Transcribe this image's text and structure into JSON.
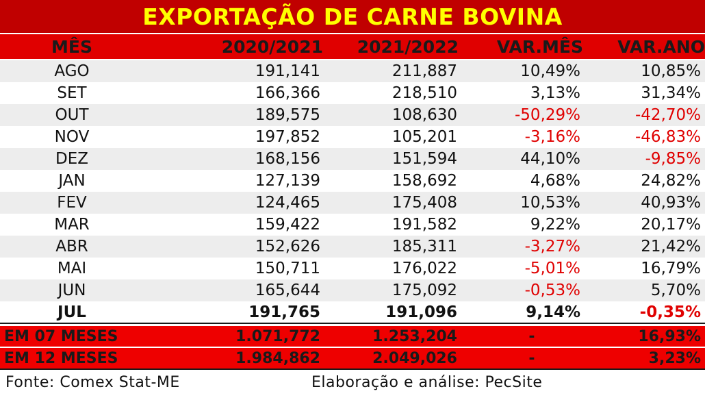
{
  "title": "EXPORTAÇÃO DE CARNE BOVINA",
  "header": [
    "MÊS",
    "2020/2021",
    "2021/2022",
    "VAR.MÊS",
    "VAR.ANO"
  ],
  "rows": [
    {
      "mes": "AGO",
      "a": "191,141",
      "b": "211,887",
      "vm": "10,49%",
      "va": "10,85%",
      "vm_neg": false,
      "va_neg": false
    },
    {
      "mes": "SET",
      "a": "166,366",
      "b": "218,510",
      "vm": "3,13%",
      "va": "31,34%",
      "vm_neg": false,
      "va_neg": false
    },
    {
      "mes": "OUT",
      "a": "189,575",
      "b": "108,630",
      "vm": "-50,29%",
      "va": "-42,70%",
      "vm_neg": true,
      "va_neg": true
    },
    {
      "mes": "NOV",
      "a": "197,852",
      "b": "105,201",
      "vm": "-3,16%",
      "va": "-46,83%",
      "vm_neg": true,
      "va_neg": true
    },
    {
      "mes": "DEZ",
      "a": "168,156",
      "b": "151,594",
      "vm": "44,10%",
      "va": "-9,85%",
      "vm_neg": false,
      "va_neg": true
    },
    {
      "mes": "JAN",
      "a": "127,139",
      "b": "158,692",
      "vm": "4,68%",
      "va": "24,82%",
      "vm_neg": false,
      "va_neg": false
    },
    {
      "mes": "FEV",
      "a": "124,465",
      "b": "175,408",
      "vm": "10,53%",
      "va": "40,93%",
      "vm_neg": false,
      "va_neg": false
    },
    {
      "mes": "MAR",
      "a": "159,422",
      "b": "191,582",
      "vm": "9,22%",
      "va": "20,17%",
      "vm_neg": false,
      "va_neg": false
    },
    {
      "mes": "ABR",
      "a": "152,626",
      "b": "185,311",
      "vm": "-3,27%",
      "va": "21,42%",
      "vm_neg": true,
      "va_neg": false
    },
    {
      "mes": "MAI",
      "a": "150,711",
      "b": "176,022",
      "vm": "-5,01%",
      "va": "16,79%",
      "vm_neg": true,
      "va_neg": false
    },
    {
      "mes": "JUN",
      "a": "165,644",
      "b": "175,092",
      "vm": "-0,53%",
      "va": "5,70%",
      "vm_neg": true,
      "va_neg": false
    },
    {
      "mes": "JUL",
      "a": "191,765",
      "b": "191,096",
      "vm": "9,14%",
      "va": "-0,35%",
      "vm_neg": false,
      "va_neg": true
    }
  ],
  "summary": [
    {
      "label": "EM 07 MESES",
      "a": "1.071,772",
      "b": "1.253,204",
      "vm": "-",
      "va": "16,93%"
    },
    {
      "label": "EM 12 MESES",
      "a": "1.984,862",
      "b": "2.049,026",
      "vm": "-",
      "va": "3,23%"
    }
  ],
  "footer": {
    "source": "Fonte: Comex Stat-ME",
    "credit": "Elaboração e análise: PecSite"
  },
  "colors": {
    "title_bg": "#c00000",
    "title_text": "#ffff00",
    "header_bg": "#e00000",
    "negative": "#e00000"
  }
}
